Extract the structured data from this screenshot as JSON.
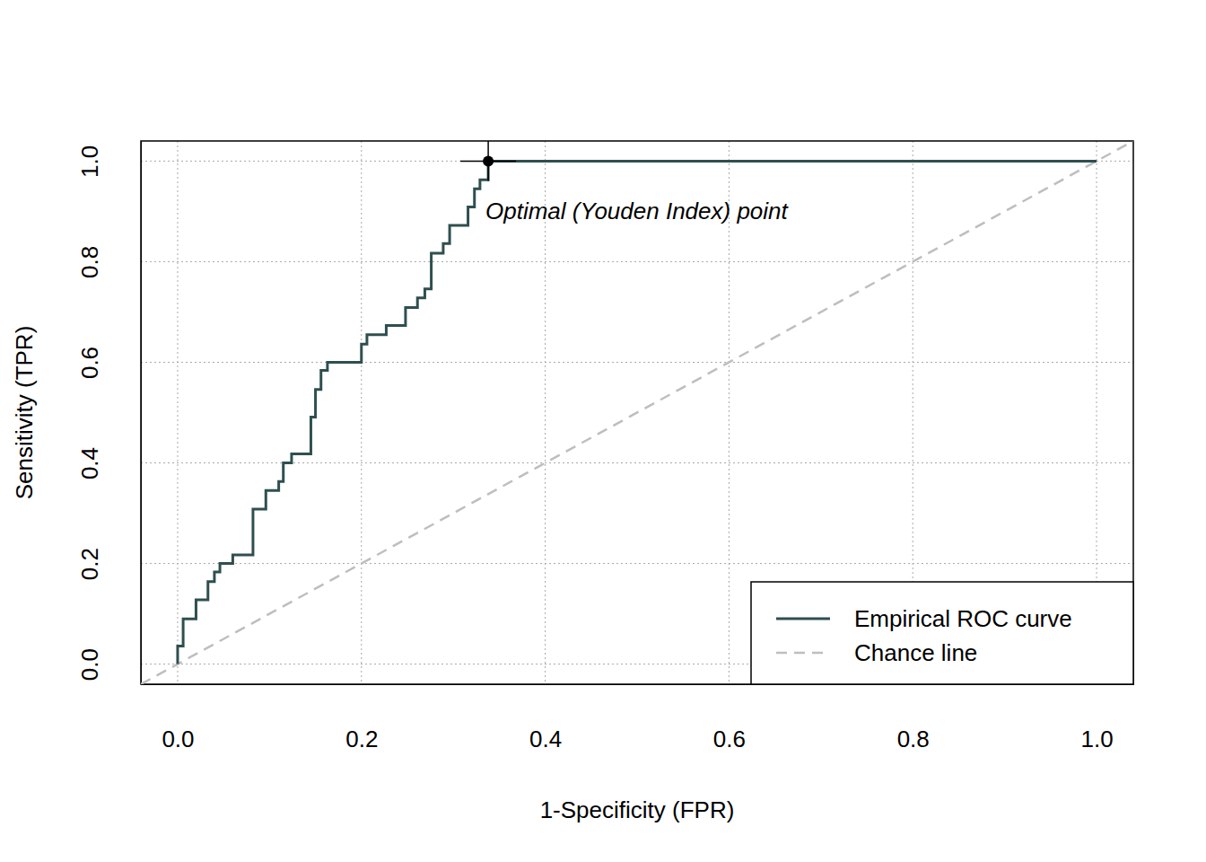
{
  "chart_data": {
    "type": "line",
    "x_label": "1-Specificity (FPR)",
    "y_label": "Sensitivity (TPR)",
    "xlim": [
      -0.04,
      1.04
    ],
    "ylim": [
      -0.04,
      1.04
    ],
    "xticks": [
      {
        "value": 0,
        "label": "0.0"
      },
      0.2,
      0.4,
      0.6,
      0.8,
      {
        "value": 1,
        "label": "1.0"
      }
    ],
    "yticks": [
      {
        "value": 0,
        "label": "0.0"
      },
      0.2,
      0.4,
      0.6,
      0.8,
      {
        "value": 1,
        "label": "1.0"
      }
    ],
    "grid": true,
    "legend": "bottomright",
    "series": [
      {
        "name": "Empirical ROC curve",
        "color": "#2F4F4F",
        "type": "step",
        "line_style": "solid",
        "x": [
          0,
          0.006,
          0.02,
          0.033,
          0.04,
          0.046,
          0.06,
          0.082,
          0.096,
          0.11,
          0.115,
          0.124,
          0.145,
          0.15,
          0.156,
          0.163,
          0.2,
          0.206,
          0.227,
          0.248,
          0.261,
          0.269,
          0.276,
          0.289,
          0.296,
          0.316,
          0.323,
          0.329,
          0.338,
          1.0
        ],
        "values": [
          0,
          0.036,
          0.09,
          0.128,
          0.164,
          0.183,
          0.2,
          0.217,
          0.308,
          0.345,
          0.363,
          0.4,
          0.418,
          0.491,
          0.546,
          0.584,
          0.6,
          0.636,
          0.655,
          0.673,
          0.709,
          0.728,
          0.746,
          0.817,
          0.836,
          0.872,
          0.909,
          0.945,
          0.963,
          1.0
        ]
      },
      {
        "name": "Chance line",
        "color": "#BEBEBE",
        "type": "line",
        "line_style": "dashed",
        "x": [
          -0.04,
          1.04
        ],
        "values": [
          -0.04,
          1.04
        ]
      }
    ],
    "optimal_point": {
      "x": 0.338,
      "y": 1.0,
      "color": "#000000",
      "marker": "cross"
    },
    "annotations": [
      {
        "text": "Optimal (Youden Index) point",
        "x": 0.335,
        "y": 0.9
      }
    ]
  }
}
